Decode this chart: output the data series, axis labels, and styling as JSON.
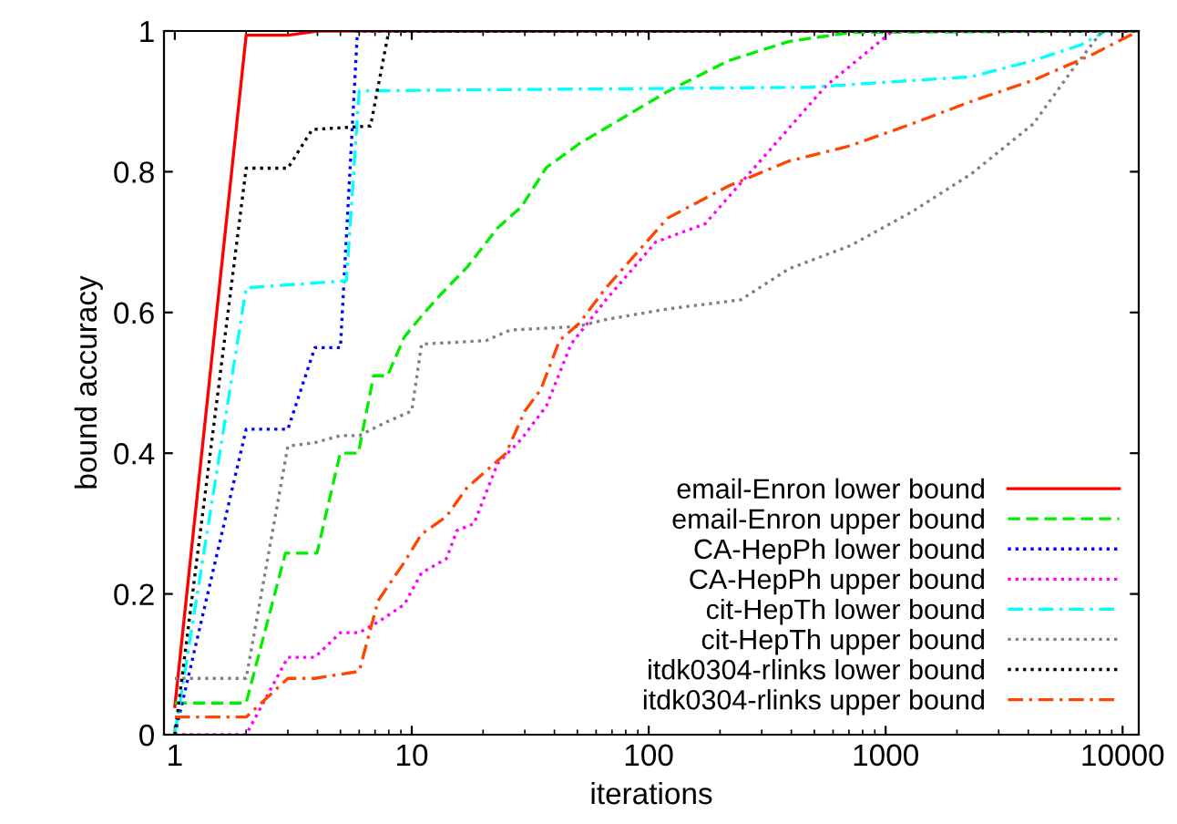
{
  "chart_data": {
    "type": "line",
    "xlabel": "iterations",
    "ylabel": "bound accuracy",
    "log": "x",
    "xlim": [
      0.9,
      11700
    ],
    "ylim": [
      0,
      1
    ],
    "xticks": [
      1,
      10,
      100,
      1000,
      10000
    ],
    "yticks": [
      0,
      0.2,
      0.4,
      0.6,
      0.8,
      1
    ],
    "grid": false,
    "legend": "bottom right",
    "marker": "none",
    "series": [
      {
        "name": "email-Enron lower bound",
        "color": "#ff0000",
        "line_style": "solid",
        "x": [
          1,
          2,
          3,
          4,
          11700
        ],
        "values": [
          0.04,
          0.994,
          0.994,
          1.0,
          1.0
        ]
      },
      {
        "name": "email-Enron upper bound",
        "color": "#00ee00",
        "line_style": "dashed",
        "x": [
          1,
          2,
          2.93,
          3.98,
          4.99,
          5.95,
          6.9,
          7.9,
          9.3,
          11,
          13.2,
          17.2,
          23,
          29,
          37,
          51,
          120,
          218,
          390,
          710,
          11700
        ],
        "values": [
          0.045,
          0.045,
          0.258,
          0.258,
          0.4,
          0.4,
          0.51,
          0.51,
          0.565,
          0.595,
          0.625,
          0.665,
          0.72,
          0.75,
          0.806,
          0.84,
          0.914,
          0.958,
          0.985,
          0.998,
          1.0
        ]
      },
      {
        "name": "CA-HepPh lower bound",
        "color": "#0000ff",
        "line_style": "dotted",
        "x": [
          1,
          2,
          3,
          3.9,
          5,
          5.9,
          11700
        ],
        "values": [
          0,
          0.434,
          0.434,
          0.55,
          0.55,
          1.0,
          1.0
        ]
      },
      {
        "name": "CA-HepPh upper bound",
        "color": "#ff00ff",
        "line_style": "dotted",
        "x": [
          1,
          2,
          3,
          3.9,
          5,
          6,
          7.2,
          9.3,
          11,
          14,
          15.5,
          18.3,
          23,
          29,
          37,
          47,
          66,
          107,
          173,
          295,
          560,
          1070,
          11700
        ],
        "values": [
          0,
          0,
          0.11,
          0.11,
          0.145,
          0.145,
          0.16,
          0.185,
          0.23,
          0.25,
          0.29,
          0.3,
          0.385,
          0.42,
          0.467,
          0.555,
          0.618,
          0.7,
          0.726,
          0.815,
          0.922,
          1.0,
          1.0
        ]
      },
      {
        "name": "cit-HepTh lower bound",
        "color": "#00ffff",
        "line_style": "dashdot",
        "x": [
          1,
          2,
          5.3,
          6,
          470,
          2300,
          4200,
          6650,
          8500,
          11700
        ],
        "values": [
          0,
          0.635,
          0.645,
          0.915,
          0.92,
          0.935,
          0.958,
          0.98,
          1.0,
          1.0
        ]
      },
      {
        "name": "cit-HepTh upper bound",
        "color": "#808080",
        "line_style": "dotted",
        "x": [
          1,
          2,
          3,
          3.9,
          5,
          6,
          7.9,
          10,
          11,
          20.6,
          26,
          50,
          66,
          120,
          245,
          390,
          710,
          1290,
          2300,
          4200,
          6270,
          8200,
          11700
        ],
        "values": [
          0.08,
          0.08,
          0.41,
          0.415,
          0.425,
          0.425,
          0.445,
          0.46,
          0.555,
          0.56,
          0.575,
          0.58,
          0.59,
          0.605,
          0.618,
          0.662,
          0.695,
          0.743,
          0.797,
          0.868,
          0.949,
          1.0,
          1.0
        ]
      },
      {
        "name": "itdk0304-rlinks lower bound",
        "color": "#000000",
        "line_style": "dotted",
        "x": [
          1,
          2,
          3,
          3.8,
          6.7,
          8,
          11700
        ],
        "values": [
          0,
          0.805,
          0.805,
          0.86,
          0.865,
          1.0,
          1.0
        ]
      },
      {
        "name": "itdk0304-rlinks upper bound",
        "color": "#ff4500",
        "line_style": "dashdot",
        "x": [
          1,
          2,
          3,
          3.9,
          6,
          7.2,
          9.3,
          11,
          14,
          17,
          25,
          30,
          35,
          42,
          51,
          66,
          120,
          218,
          390,
          710,
          1290,
          2300,
          4200,
          7500,
          11700
        ],
        "values": [
          0.025,
          0.025,
          0.08,
          0.08,
          0.09,
          0.19,
          0.245,
          0.285,
          0.31,
          0.35,
          0.4,
          0.46,
          0.49,
          0.56,
          0.585,
          0.635,
          0.734,
          0.78,
          0.815,
          0.837,
          0.868,
          0.9,
          0.93,
          0.967,
          1.0
        ]
      }
    ]
  }
}
